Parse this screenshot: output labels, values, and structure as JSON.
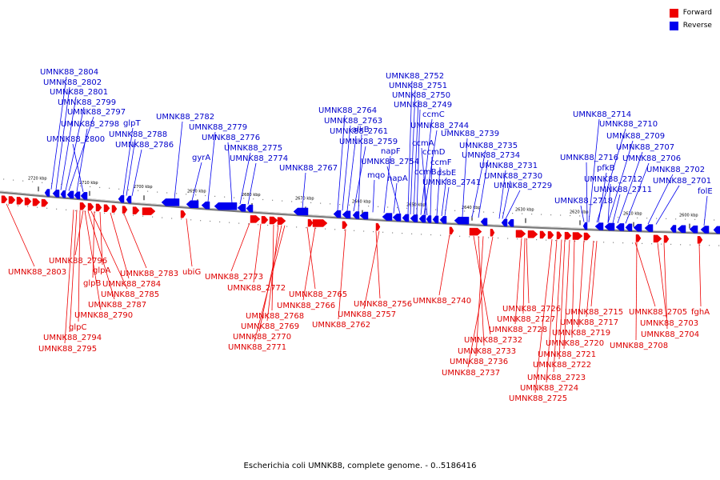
{
  "legend": [
    {
      "label": "Forward",
      "color": "#ee0000"
    },
    {
      "label": "Reverse",
      "color": "#0000ee"
    }
  ],
  "caption": "Escherichia coli UMNK88, complete genome. - 0..5186416",
  "ticks": [
    "2720 kbp",
    "2710 kbp",
    "2700 kbp",
    "2690 kbp",
    "2680 kbp",
    "2670 kbp",
    "2660 kbp",
    "2650 kbp",
    "2640 kbp",
    "2630 kbp",
    "2620 kbp",
    "2610 kbp",
    "2600 kbp"
  ],
  "reverse_genes": [
    "UMNK88_2804",
    "UMNK88_2802",
    "UMNK88_2801",
    "UMNK88_2799",
    "UMNK88_2797",
    "UMNK88_2798",
    "UMNK88_2800",
    "glpT",
    "UMNK88_2788",
    "UMNK88_2786",
    "UMNK88_2782",
    "gyrA",
    "UMNK88_2779",
    "UMNK88_2776",
    "UMNK88_2775",
    "UMNK88_2774",
    "UMNK88_2767",
    "UMNK88_2764",
    "UMNK88_2763",
    "UMNK88_2761",
    "UMNK88_2759",
    "alkB",
    "mqo",
    "napF",
    "napA",
    "UMNK88_2754",
    "UMNK88_2752",
    "UMNK88_2751",
    "UMNK88_2750",
    "UMNK88_2749",
    "ccmC",
    "UMNK88_2744",
    "ccmA",
    "ccmD",
    "ccmB",
    "ccmF",
    "dsbE",
    "UMNK88_2741",
    "UMNK88_2739",
    "UMNK88_2735",
    "UMNK88_2734",
    "UMNK88_2731",
    "UMNK88_2730",
    "UMNK88_2729",
    "UMNK88_2714",
    "UMNK88_2710",
    "UMNK88_2709",
    "UMNK88_2707",
    "UMNK88_2716",
    "pfkB",
    "UMNK88_2706",
    "UMNK88_2702",
    "UMNK88_2712",
    "UMNK88_2711",
    "UMNK88_2701",
    "folE",
    "UMNK88_2718"
  ],
  "forward_genes": [
    "UMNK88_2803",
    "UMNK88_2796",
    "glpA",
    "glpB",
    "UMNK88_2784",
    "UMNK88_2783",
    "UMNK88_2785",
    "UMNK88_2787",
    "UMNK88_2790",
    "glpC",
    "UMNK88_2794",
    "UMNK88_2795",
    "ubiG",
    "UMNK88_2773",
    "UMNK88_2772",
    "UMNK88_2768",
    "UMNK88_2769",
    "UMNK88_2770",
    "UMNK88_2771",
    "UMNK88_2765",
    "UMNK88_2766",
    "UMNK88_2762",
    "UMNK88_2756",
    "UMNK88_2757",
    "UMNK88_2740",
    "UMNK88_2726",
    "UMNK88_2727",
    "UMNK88_2728",
    "UMNK88_2732",
    "UMNK88_2733",
    "UMNK88_2736",
    "UMNK88_2737",
    "UMNK88_2715",
    "UMNK88_2717",
    "UMNK88_2719",
    "UMNK88_2720",
    "UMNK88_2721",
    "UMNK88_2722",
    "UMNK88_2723",
    "UMNK88_2724",
    "UMNK88_2725",
    "UMNK88_2705",
    "fghA",
    "UMNK88_2703",
    "UMNK88_2704",
    "UMNK88_2708"
  ]
}
